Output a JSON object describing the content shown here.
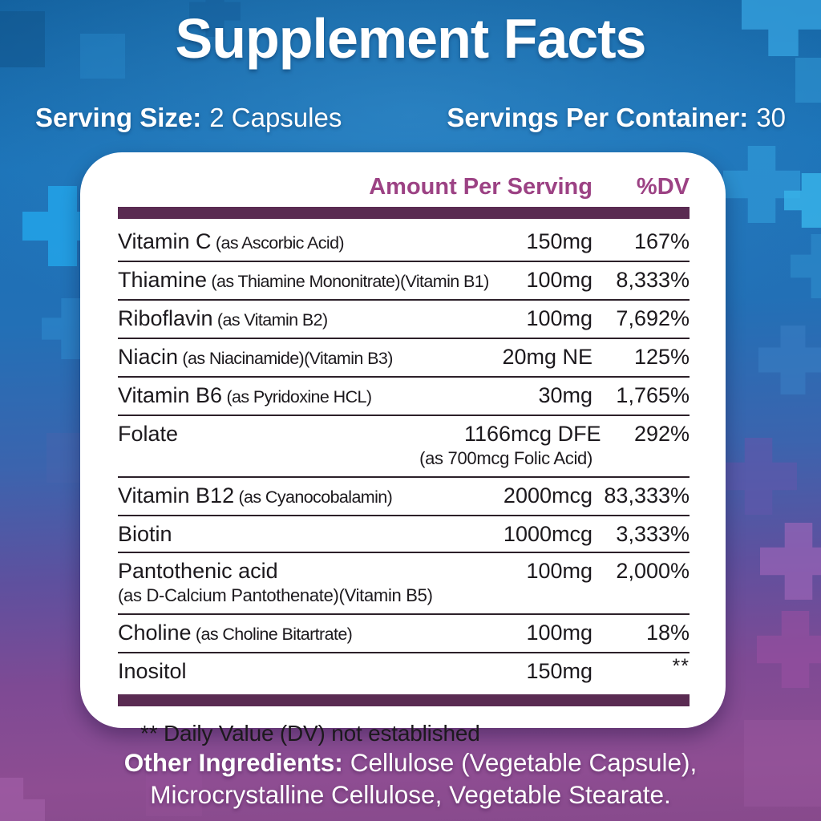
{
  "header": {
    "title": "Supplement Facts",
    "serving_size_label": "Serving Size:",
    "serving_size_value": "2 Capsules",
    "servings_per_container_label": "Servings Per Container:",
    "servings_per_container_value": "30"
  },
  "table": {
    "amount_header": "Amount Per Serving",
    "dv_header": "%DV",
    "rows": [
      {
        "name": "Vitamin C",
        "as_note": "(as Ascorbic Acid)",
        "amount": "150mg",
        "dv": "167%"
      },
      {
        "name": "Thiamine",
        "as_note": "(as Thiamine Mononitrate)(Vitamin B1)",
        "amount": "100mg",
        "dv": "8,333%"
      },
      {
        "name": "Riboflavin",
        "as_note": "(as Vitamin B2)",
        "amount": "100mg",
        "dv": "7,692%"
      },
      {
        "name": "Niacin",
        "as_note": "(as Niacinamide)(Vitamin B3)",
        "amount": "20mg NE",
        "dv": "125%"
      },
      {
        "name": "Vitamin B6",
        "as_note": "(as Pyridoxine HCL)",
        "amount": "30mg",
        "dv": "1,765%"
      },
      {
        "name": "Folate",
        "as_note": "",
        "amount": "1166mcg DFE",
        "dv": "292%",
        "sub": "(as 700mcg Folic Acid)",
        "sub_align": "amount"
      },
      {
        "name": "Vitamin B12",
        "as_note": "(as Cyanocobalamin)",
        "amount": "2000mcg",
        "dv": "83,333%"
      },
      {
        "name": "Biotin",
        "as_note": "",
        "amount": "1000mcg",
        "dv": "3,333%"
      },
      {
        "name": "Pantothenic acid",
        "as_note": "",
        "amount": "100mg",
        "dv": "2,000%",
        "sub": "(as D-Calcium Pantothenate)(Vitamin B5)",
        "sub_align": "left"
      },
      {
        "name": "Choline",
        "as_note": "(as Choline Bitartrate)",
        "amount": "100mg",
        "dv": "18%"
      },
      {
        "name": "Inositol",
        "as_note": "",
        "amount": "150mg",
        "dv": "**"
      }
    ],
    "footnote": "** Daily Value (DV) not established"
  },
  "footer": {
    "other_ingredients_label": "Other Ingredients:",
    "other_ingredients_text": "Cellulose (Vegetable Capsule), Microcrystalline Cellulose, Vegetable Stearate."
  },
  "theme": {
    "bg_blue": "#1b74ba",
    "bg_purple": "#8d4b91",
    "accent_magenta": "#9c4284",
    "bar_purple": "#5a2b52",
    "separator_dark": "#2c2029",
    "panel_white": "#ffffff",
    "text_white": "#ffffff",
    "text_dark": "#1c191d"
  }
}
